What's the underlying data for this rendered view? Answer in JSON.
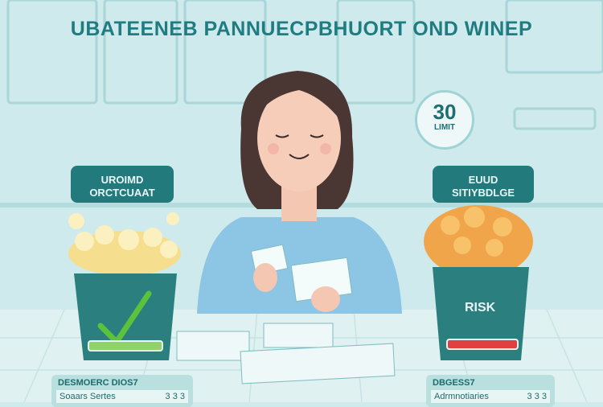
{
  "title": "UBATEENEB PANNUECPBHUORT OND WINEP",
  "left_label": {
    "line1": "UROIMD",
    "line2": "ORCTCUAAT"
  },
  "right_label": {
    "line1": "EUUD",
    "line2": "SITIYBDLGE"
  },
  "badge": {
    "number": "30",
    "text": "LIMIT"
  },
  "right_bucket_text": "RISK",
  "left_card": {
    "heading": "DESMOERC DIOS7",
    "row_label": "Soaars Sertes",
    "row_value": "3 3 3"
  },
  "right_card": {
    "heading": "DBGESS7",
    "row_label": "Adrmnotiaries",
    "row_value": "3 3 3"
  },
  "colors": {
    "teal": "#237a7d",
    "good_bar": "#8fd36a",
    "risk_bar": "#e0403f",
    "check": "#5cc23b"
  },
  "icons": [
    "checkmark-icon"
  ]
}
